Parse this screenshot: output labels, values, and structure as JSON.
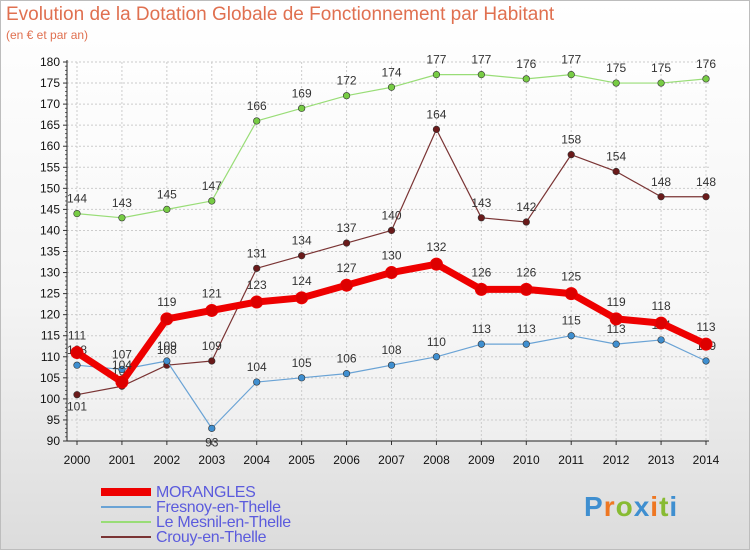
{
  "header": {
    "title": "Evolution de la Dotation Globale de Fonctionnement par Habitant",
    "subtitle": "(en € et par an)"
  },
  "chart_data": {
    "type": "line",
    "title": "Evolution de la Dotation Globale de Fonctionnement par Habitant",
    "ylabel": "(en € et par an)",
    "xlabel": "",
    "ylim": [
      90,
      180
    ],
    "yticks": [
      90,
      95,
      100,
      105,
      110,
      115,
      120,
      125,
      130,
      135,
      140,
      145,
      150,
      155,
      160,
      165,
      170,
      175,
      180
    ],
    "grid": true,
    "categories": [
      "2000",
      "2001",
      "2002",
      "2003",
      "2004",
      "2005",
      "2006",
      "2007",
      "2008",
      "2009",
      "2010",
      "2011",
      "2012",
      "2013",
      "2014"
    ],
    "series": [
      {
        "name": "Le Mesnil-en-Thelle",
        "color": "#99dd77",
        "marker": "#77cc44",
        "values": [
          144,
          143,
          145,
          147,
          166,
          169,
          172,
          174,
          177,
          177,
          176,
          177,
          175,
          175,
          176
        ]
      },
      {
        "name": "Crouy-en-Thelle",
        "color": "#7a3434",
        "marker": "#6a1a1a",
        "values": [
          101,
          103,
          108,
          109,
          131,
          134,
          137,
          140,
          164,
          143,
          142,
          158,
          154,
          148,
          148
        ]
      },
      {
        "name": "Fresnoy-en-Thelle",
        "color": "#6aa3d5",
        "marker": "#3f8fd0",
        "values": [
          108,
          107,
          109,
          93,
          104,
          105,
          106,
          108,
          110,
          113,
          113,
          115,
          113,
          114,
          109
        ]
      },
      {
        "name": "MORANGLES",
        "color": "#ee0000",
        "marker": "#dd0000",
        "values": [
          111,
          104,
          119,
          121,
          123,
          124,
          127,
          130,
          132,
          126,
          126,
          125,
          119,
          118,
          113
        ]
      }
    ],
    "legend": [
      "MORANGLES",
      "Fresnoy-en-Thelle",
      "Le Mesnil-en-Thelle",
      "Crouy-en-Thelle"
    ],
    "legend_position": "bottom-left"
  },
  "logo": {
    "text": "Proxiti",
    "colors": [
      "#3f8fd0",
      "#ee7722",
      "#88bb33",
      "#3f8fd0",
      "#ee7722",
      "#88bb33",
      "#3f8fd0"
    ]
  }
}
